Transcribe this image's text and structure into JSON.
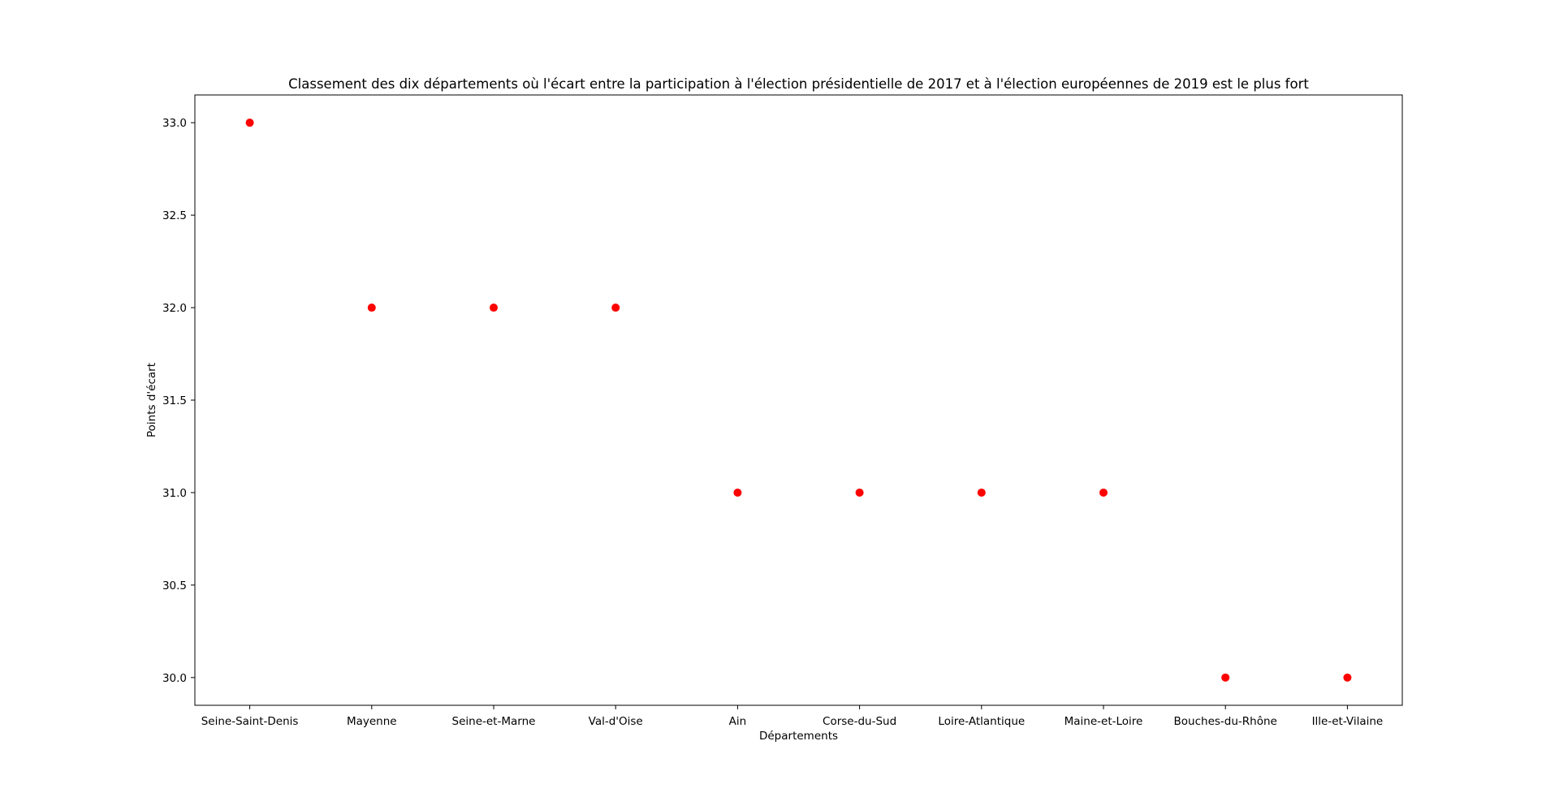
{
  "chart_data": {
    "type": "scatter",
    "title": "Classement des dix départements où l'écart entre la participation à l'élection présidentielle de 2017 et à l'élection européennes de 2019 est le plus fort",
    "xlabel": "Départements",
    "ylabel": "Points d'écart",
    "categories": [
      "Seine-Saint-Denis",
      "Mayenne",
      "Seine-et-Marne",
      "Val-d'Oise",
      "Ain",
      "Corse-du-Sud",
      "Loire-Atlantique",
      "Maine-et-Loire",
      "Bouches-du-Rhône",
      "Ille-et-Vilaine"
    ],
    "values": [
      33,
      32,
      32,
      32,
      31,
      31,
      31,
      31,
      30,
      30
    ],
    "ylim": [
      29.85,
      33.15
    ],
    "yticks": [
      30.0,
      30.5,
      31.0,
      31.5,
      32.0,
      32.5,
      33.0
    ],
    "ytick_labels": [
      "30.0",
      "30.5",
      "31.0",
      "31.5",
      "32.0",
      "32.5",
      "33.0"
    ],
    "grid": false,
    "marker_color": "#ff0000"
  }
}
